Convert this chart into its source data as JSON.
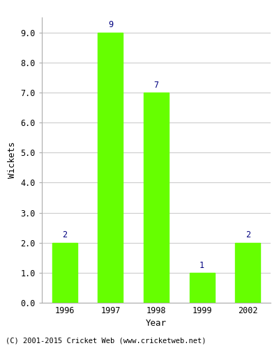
{
  "categories": [
    "1996",
    "1997",
    "1998",
    "1999",
    "2002"
  ],
  "values": [
    2,
    9,
    7,
    1,
    2
  ],
  "bar_color": "#66ff00",
  "bar_edge_color": "#66ff00",
  "xlabel": "Year",
  "ylabel": "Wickets",
  "ylim": [
    0,
    9.5
  ],
  "yticks": [
    0.0,
    1.0,
    2.0,
    3.0,
    4.0,
    5.0,
    6.0,
    7.0,
    8.0,
    9.0
  ],
  "label_color": "#000080",
  "label_fontsize": 8.5,
  "axis_label_fontsize": 9,
  "tick_fontsize": 8.5,
  "footer_text": "(C) 2001-2015 Cricket Web (www.cricketweb.net)",
  "footer_fontsize": 7.5,
  "background_color": "#ffffff",
  "grid_color": "#cccccc",
  "bar_width": 0.55
}
